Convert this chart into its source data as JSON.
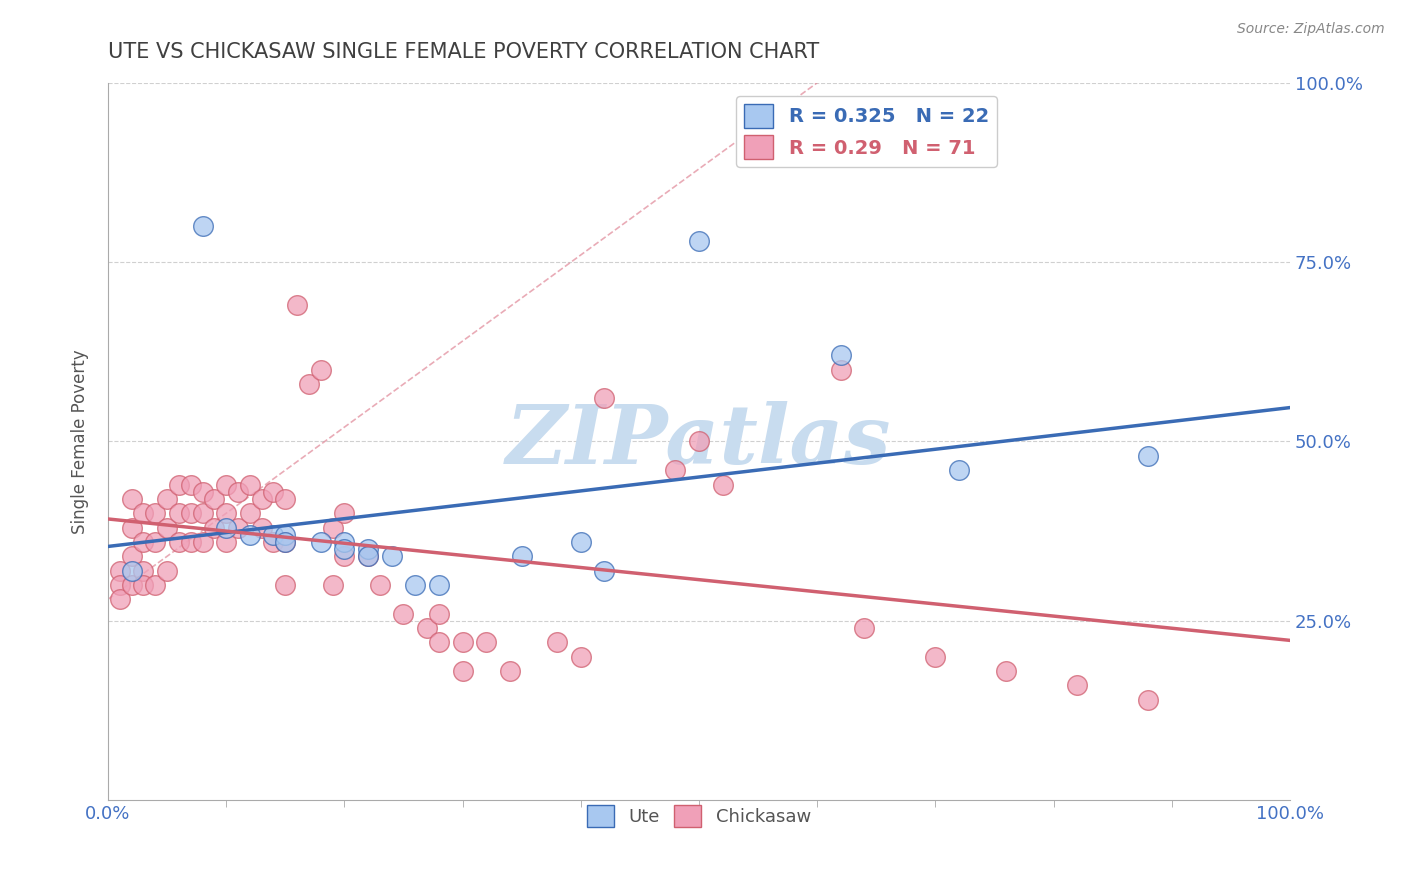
{
  "title": "UTE VS CHICKASAW SINGLE FEMALE POVERTY CORRELATION CHART",
  "source_text": "Source: ZipAtlas.com",
  "ylabel": "Single Female Poverty",
  "xlim": [
    0.0,
    1.0
  ],
  "ylim": [
    0.0,
    1.0
  ],
  "ute_R": 0.325,
  "ute_N": 22,
  "chickasaw_R": 0.29,
  "chickasaw_N": 71,
  "ute_color": "#A8C8F0",
  "chickasaw_color": "#F0A0B8",
  "ute_line_color": "#3A6BB5",
  "chickasaw_line_color": "#D06070",
  "diagonal_color": "#D0A0A8",
  "grid_color": "#D0D0D0",
  "watermark_color": "#C8DCEF",
  "title_color": "#404040",
  "tick_color": "#4472C4",
  "background_color": "#FFFFFF",
  "ute_x": [
    0.02,
    0.08,
    0.1,
    0.12,
    0.14,
    0.15,
    0.15,
    0.18,
    0.2,
    0.2,
    0.22,
    0.22,
    0.24,
    0.26,
    0.28,
    0.35,
    0.4,
    0.42,
    0.5,
    0.62,
    0.72,
    0.88
  ],
  "ute_y": [
    0.32,
    0.8,
    0.38,
    0.37,
    0.37,
    0.37,
    0.36,
    0.36,
    0.36,
    0.35,
    0.35,
    0.34,
    0.34,
    0.3,
    0.3,
    0.34,
    0.36,
    0.32,
    0.78,
    0.62,
    0.46,
    0.48
  ],
  "chickasaw_x": [
    0.01,
    0.01,
    0.01,
    0.02,
    0.02,
    0.02,
    0.02,
    0.03,
    0.03,
    0.03,
    0.03,
    0.04,
    0.04,
    0.04,
    0.05,
    0.05,
    0.05,
    0.06,
    0.06,
    0.06,
    0.07,
    0.07,
    0.07,
    0.08,
    0.08,
    0.08,
    0.09,
    0.09,
    0.1,
    0.1,
    0.1,
    0.11,
    0.11,
    0.12,
    0.12,
    0.13,
    0.13,
    0.14,
    0.14,
    0.15,
    0.15,
    0.15,
    0.16,
    0.17,
    0.18,
    0.19,
    0.19,
    0.2,
    0.2,
    0.22,
    0.23,
    0.25,
    0.27,
    0.28,
    0.28,
    0.3,
    0.3,
    0.32,
    0.34,
    0.38,
    0.4,
    0.42,
    0.48,
    0.5,
    0.52,
    0.62,
    0.64,
    0.7,
    0.76,
    0.82,
    0.88
  ],
  "chickasaw_y": [
    0.32,
    0.3,
    0.28,
    0.42,
    0.38,
    0.34,
    0.3,
    0.4,
    0.36,
    0.32,
    0.3,
    0.4,
    0.36,
    0.3,
    0.42,
    0.38,
    0.32,
    0.44,
    0.4,
    0.36,
    0.44,
    0.4,
    0.36,
    0.43,
    0.4,
    0.36,
    0.42,
    0.38,
    0.44,
    0.4,
    0.36,
    0.43,
    0.38,
    0.44,
    0.4,
    0.42,
    0.38,
    0.43,
    0.36,
    0.42,
    0.36,
    0.3,
    0.69,
    0.58,
    0.6,
    0.38,
    0.3,
    0.4,
    0.34,
    0.34,
    0.3,
    0.26,
    0.24,
    0.22,
    0.26,
    0.22,
    0.18,
    0.22,
    0.18,
    0.22,
    0.2,
    0.56,
    0.46,
    0.5,
    0.44,
    0.6,
    0.24,
    0.2,
    0.18,
    0.16,
    0.14
  ]
}
